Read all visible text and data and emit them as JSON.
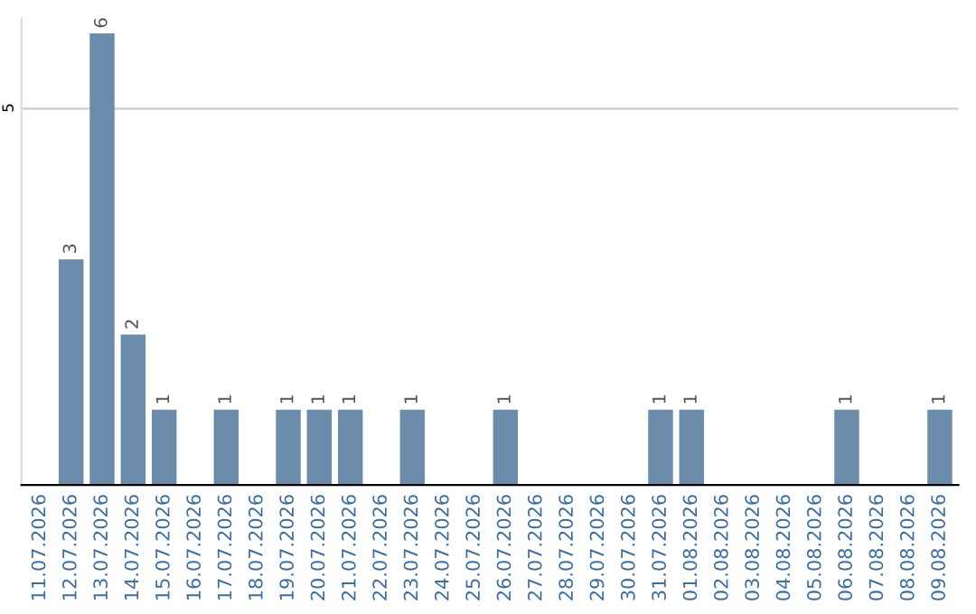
{
  "chart_data": {
    "type": "bar",
    "categories": [
      "11.07.2026",
      "12.07.2026",
      "13.07.2026",
      "14.07.2026",
      "15.07.2026",
      "16.07.2026",
      "17.07.2026",
      "18.07.2026",
      "19.07.2026",
      "20.07.2026",
      "21.07.2026",
      "22.07.2026",
      "23.07.2026",
      "24.07.2026",
      "25.07.2026",
      "26.07.2026",
      "27.07.2026",
      "28.07.2026",
      "29.07.2026",
      "30.07.2026",
      "31.07.2026",
      "01.08.2026",
      "02.08.2026",
      "03.08.2026",
      "04.08.2026",
      "05.08.2026",
      "06.08.2026",
      "07.08.2026",
      "08.08.2026",
      "09.08.2026"
    ],
    "values": [
      0,
      3,
      6,
      2,
      1,
      0,
      1,
      0,
      1,
      1,
      1,
      0,
      1,
      0,
      0,
      1,
      0,
      0,
      0,
      0,
      1,
      1,
      0,
      0,
      0,
      0,
      1,
      0,
      0,
      1
    ],
    "value_labels": [
      null,
      "3",
      "6",
      "2",
      "1",
      null,
      "1",
      null,
      "1",
      "1",
      "1",
      null,
      "1",
      null,
      null,
      "1",
      null,
      null,
      null,
      null,
      "1",
      "1",
      null,
      null,
      null,
      null,
      "1",
      null,
      null,
      "1"
    ],
    "color": "#6b8cab",
    "ylim": [
      0,
      6.2
    ],
    "yticks": [
      5
    ],
    "grid": "y"
  }
}
